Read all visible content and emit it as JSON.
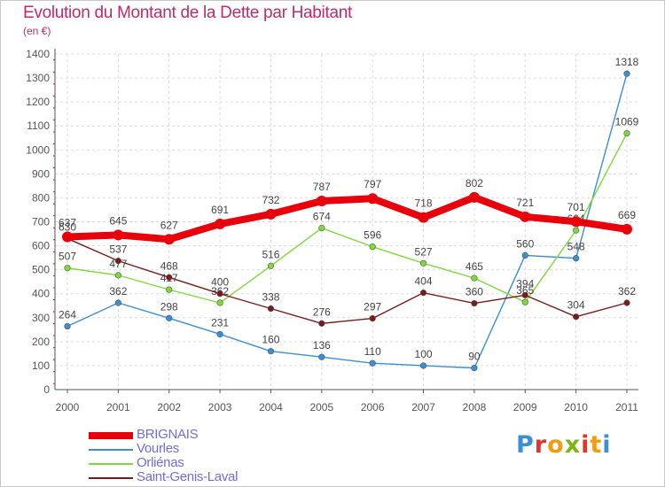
{
  "header": {
    "title": "Evolution du Montant de la Dette par Habitant",
    "unit": "(en €)"
  },
  "logo": {
    "letters": [
      "P",
      "r",
      "o",
      "x",
      "i",
      "t",
      "i"
    ],
    "colors": [
      "#3a8fd6",
      "#e8322a",
      "#f39c12",
      "#7cb518",
      "#e8322a",
      "#f39c12",
      "#3a8fd6"
    ]
  },
  "chart_data": {
    "type": "line",
    "title": "Evolution du Montant de la Dette par Habitant",
    "subtitle": "(en €)",
    "xlabel": "",
    "ylabel": "",
    "x": [
      "2000",
      "2001",
      "2002",
      "2003",
      "2004",
      "2005",
      "2006",
      "2007",
      "2008",
      "2009",
      "2010",
      "2011"
    ],
    "ylim": [
      0,
      1400
    ],
    "yticks": [
      0,
      100,
      200,
      300,
      400,
      500,
      600,
      700,
      800,
      900,
      1000,
      1100,
      1200,
      1300,
      1400
    ],
    "grid": true,
    "legend_position": "bottom-left",
    "series": [
      {
        "name": "BRIGNAIS",
        "color": "#e8000b",
        "emphasis": true,
        "values": [
          637,
          645,
          627,
          691,
          732,
          787,
          797,
          718,
          802,
          721,
          701,
          669
        ]
      },
      {
        "name": "Vourles",
        "color": "#3a8fd6",
        "emphasis": false,
        "values": [
          264,
          362,
          298,
          231,
          160,
          136,
          110,
          100,
          90,
          560,
          548,
          1318
        ]
      },
      {
        "name": "Orliénas",
        "color": "#7fd93b",
        "emphasis": false,
        "values": [
          507,
          477,
          417,
          362,
          516,
          674,
          596,
          527,
          465,
          365,
          664,
          1069
        ]
      },
      {
        "name": "Saint-Genis-Laval",
        "color": "#7a1a1a",
        "emphasis": false,
        "values": [
          630,
          537,
          468,
          400,
          338,
          276,
          297,
          404,
          360,
          394,
          304,
          362
        ]
      }
    ]
  }
}
